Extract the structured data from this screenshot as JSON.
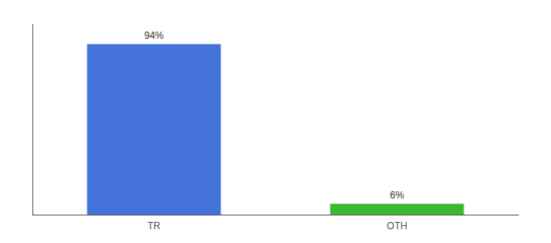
{
  "chart_data": {
    "type": "bar",
    "categories": [
      "TR",
      "OTH"
    ],
    "values": [
      94,
      6
    ],
    "value_labels": [
      "94%",
      "6%"
    ],
    "colors": [
      "#4472db",
      "#3cb832"
    ],
    "ylim": [
      0,
      105
    ],
    "data_labels": true,
    "tick_labels": "x",
    "grid": false
  }
}
